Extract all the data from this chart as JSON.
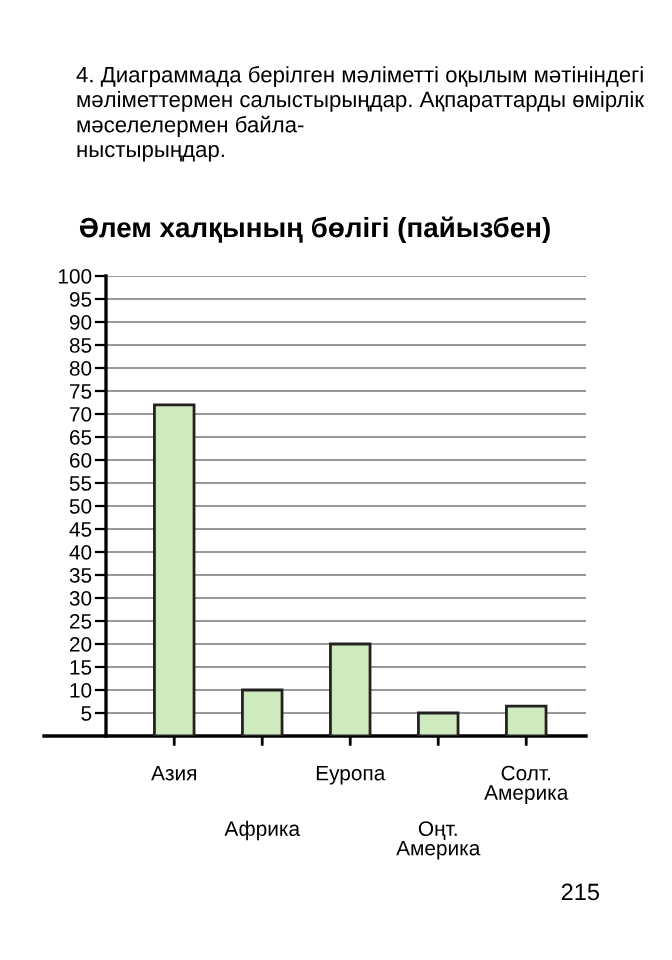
{
  "chart_data": {
    "type": "bar",
    "title": "Әлем халқының бөлігі (пайызбен)",
    "categories": [
      "Азия",
      "Африка",
      "Еуропа",
      "Оңт.\nАмерика",
      "Солт.\nАмерика"
    ],
    "values": [
      72,
      10,
      20,
      5,
      6.5
    ],
    "color": "#d0eac0",
    "ylim": [
      0,
      100
    ],
    "yticks": [
      5,
      10,
      15,
      20,
      25,
      30,
      35,
      40,
      45,
      50,
      55,
      60,
      65,
      70,
      75,
      80,
      85,
      90,
      95,
      100
    ],
    "grid": "y",
    "legend": false,
    "annotations": [
      "4. Диаграммада берілген мәліметті оқылым мәтініндегі мәліметтермен салыстырыңдар. Ақпараттарды өмірлік мәселелермен байла-\nныстырыңдар.",
      "215"
    ]
  }
}
